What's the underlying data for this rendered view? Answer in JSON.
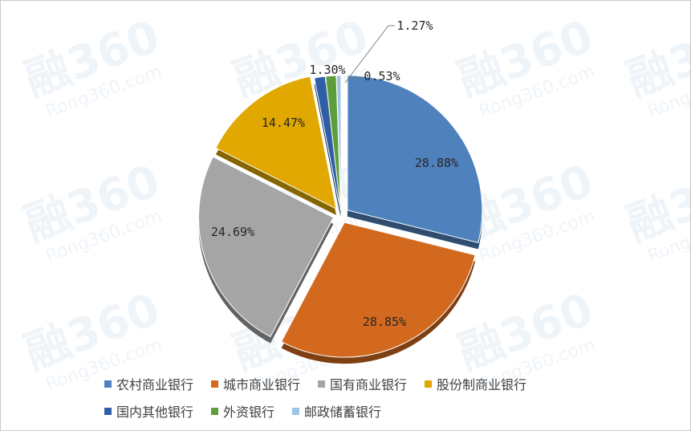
{
  "watermark": {
    "logo_text": "融360",
    "url_text": "Rong360.com"
  },
  "chart_data": {
    "type": "pie",
    "title": "",
    "series": [
      {
        "name": "农村商业银行",
        "value": 28.88,
        "label": "28.88%",
        "color": "#4f81bd"
      },
      {
        "name": "城市商业银行",
        "value": 28.85,
        "label": "28.85%",
        "color": "#d2691e"
      },
      {
        "name": "国有商业银行",
        "value": 24.69,
        "label": "24.69%",
        "color": "#a5a5a5"
      },
      {
        "name": "股份制商业银行",
        "value": 14.47,
        "label": "14.47%",
        "color": "#e0a800"
      },
      {
        "name": "国内其他银行",
        "value": 1.3,
        "label": "1.30%",
        "color": "#2e5ea8"
      },
      {
        "name": "外资银行",
        "value": 1.27,
        "label": "1.27%",
        "color": "#5e9e3a"
      },
      {
        "name": "邮政储蓄银行",
        "value": 0.53,
        "label": "0.53%",
        "color": "#9dc3e6"
      }
    ],
    "legend_position": "bottom",
    "style": "exploded 3D pie"
  }
}
